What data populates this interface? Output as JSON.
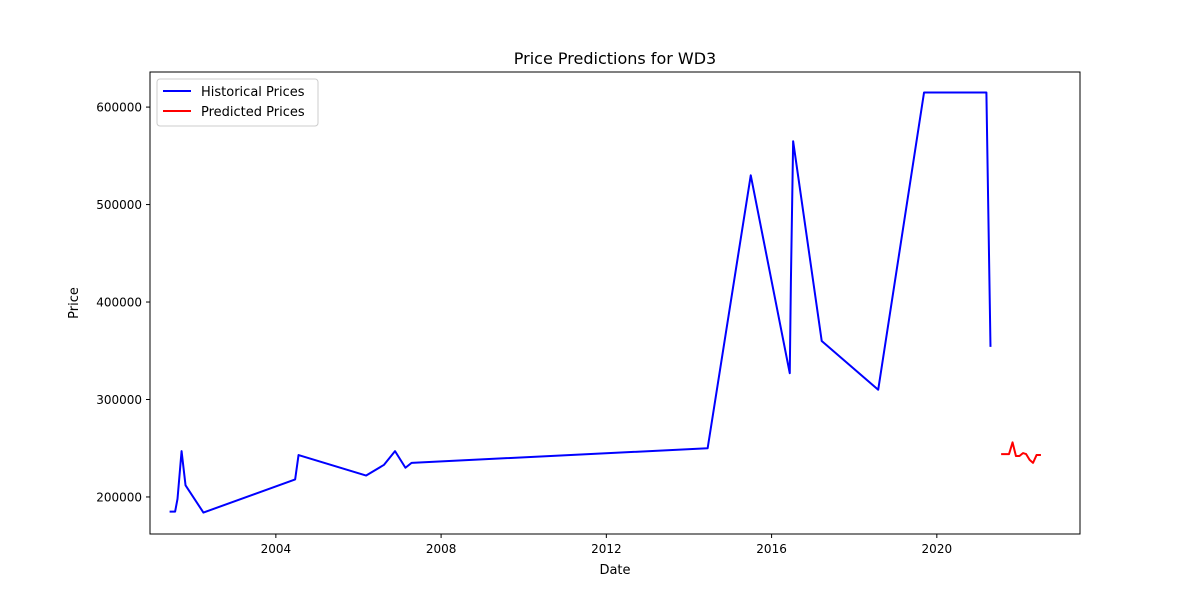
{
  "chart_data": {
    "type": "line",
    "title": "Price Predictions for WD3",
    "xlabel": "Date",
    "ylabel": "Price",
    "x_ticks": [
      "2004",
      "2008",
      "2012",
      "2016",
      "2020"
    ],
    "y_ticks": [
      "200000",
      "300000",
      "400000",
      "500000",
      "600000"
    ],
    "xlim": [
      "2000-12-15",
      "2023-06-20"
    ],
    "ylim": [
      162000,
      636000
    ],
    "grid": false,
    "legend_position": "top-left",
    "series": [
      {
        "name": "Historical Prices",
        "color": "#0000ff",
        "points": [
          [
            "2001-06-15",
            185000
          ],
          [
            "2001-07-25",
            185000
          ],
          [
            "2001-08-15",
            198000
          ],
          [
            "2001-09-20",
            247000
          ],
          [
            "2001-10-25",
            212000
          ],
          [
            "2002-04-01",
            184000
          ],
          [
            "2004-06-20",
            218000
          ],
          [
            "2004-07-20",
            243000
          ],
          [
            "2006-03-10",
            222000
          ],
          [
            "2006-08-15",
            233000
          ],
          [
            "2006-11-20",
            247000
          ],
          [
            "2007-02-20",
            230000
          ],
          [
            "2007-04-15",
            235000
          ],
          [
            "2014-06-15",
            250000
          ],
          [
            "2015-07-01",
            530000
          ],
          [
            "2016-06-10",
            327000
          ],
          [
            "2016-06-20",
            420000
          ],
          [
            "2016-07-10",
            565000
          ],
          [
            "2017-03-20",
            360000
          ],
          [
            "2018-08-01",
            310000
          ],
          [
            "2019-09-10",
            615000
          ],
          [
            "2021-03-15",
            615000
          ],
          [
            "2021-04-20",
            355000
          ]
        ]
      },
      {
        "name": "Predicted Prices",
        "color": "#ff0000",
        "points": [
          [
            "2021-08-01",
            244000
          ],
          [
            "2021-09-01",
            244000
          ],
          [
            "2021-10-01",
            244000
          ],
          [
            "2021-11-01",
            256000
          ],
          [
            "2021-12-01",
            242000
          ],
          [
            "2022-01-01",
            242000
          ],
          [
            "2022-02-01",
            245000
          ],
          [
            "2022-03-01",
            244000
          ],
          [
            "2022-04-01",
            238000
          ],
          [
            "2022-05-01",
            235000
          ],
          [
            "2022-06-01",
            243000
          ],
          [
            "2022-07-01",
            243000
          ]
        ]
      }
    ]
  }
}
